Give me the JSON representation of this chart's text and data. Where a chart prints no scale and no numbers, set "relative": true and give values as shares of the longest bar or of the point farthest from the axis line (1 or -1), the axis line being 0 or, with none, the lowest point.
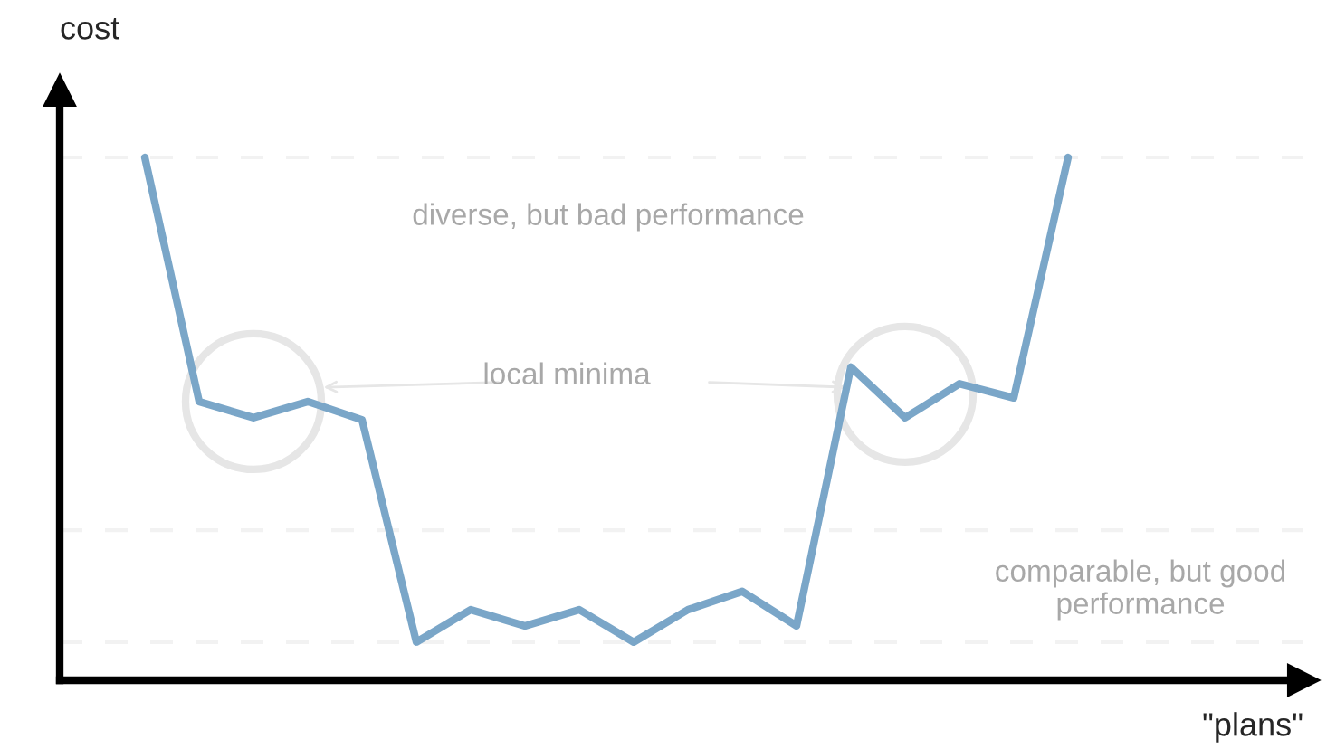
{
  "chart_data": {
    "type": "line",
    "relative": true,
    "xlabel": "\"plans\"",
    "ylabel": "cost",
    "categories": [
      null,
      null,
      null,
      null,
      null,
      null,
      null,
      null,
      null,
      null,
      null,
      null,
      null,
      null,
      null,
      null,
      null,
      null
    ],
    "series": [
      {
        "color": "#7aa6c8",
        "values": [
          1.0,
          0.533,
          0.502,
          0.533,
          0.498,
          0.073,
          0.135,
          0.104,
          0.135,
          0.073,
          0.135,
          0.17,
          0.104,
          0.599,
          0.502,
          0.567,
          0.54,
          1.0
        ]
      }
    ],
    "ref_lines": [
      {
        "axis": "y",
        "value": 1.0,
        "color": "#f2f2f2",
        "line_style": "dashed"
      },
      {
        "axis": "y",
        "value": 0.287,
        "color": "#f2f2f2",
        "line_style": "dashed"
      },
      {
        "axis": "y",
        "value": 0.073,
        "color": "#f2f2f2",
        "line_style": "dashed"
      }
    ],
    "annotations": [
      "diverse, but bad performance",
      "local minima",
      "comparable, but good performance"
    ],
    "grid": false,
    "marker": "none",
    "line_style": "solid"
  }
}
